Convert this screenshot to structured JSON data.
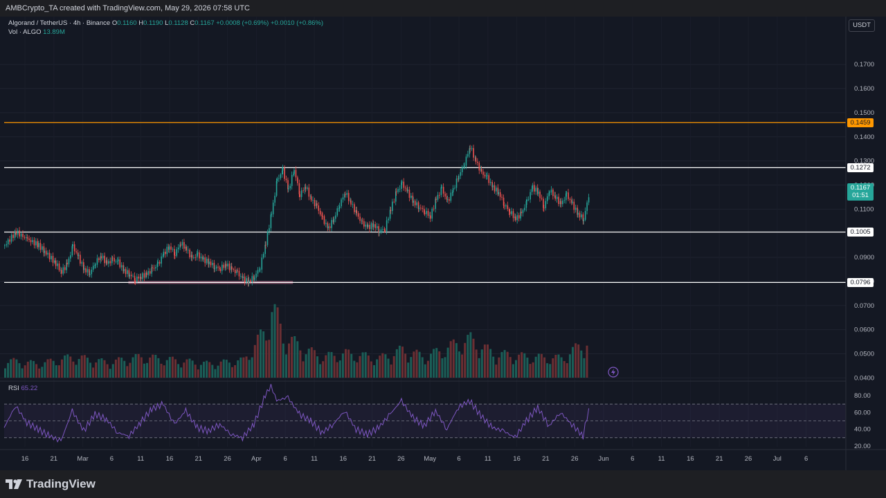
{
  "header": {
    "credit": "AMBCrypto_TA created with TradingView.com, May 29, 2026 07:58 UTC"
  },
  "legend": {
    "symbol": "Algorand / TetherUS · 4h · Binance",
    "open_label": "O",
    "open": "0.1160",
    "high_label": "H",
    "high": "0.1190",
    "low_label": "L",
    "low": "0.1128",
    "close_label": "C",
    "close": "0.1167",
    "change": "+0.0008 (+0.69%)",
    "change2": "+0.0010 (+0.86%)",
    "vol_label": "Vol · ALGO",
    "vol_value": "13.89M",
    "rsi_label": "RSI",
    "rsi_value": "65.22"
  },
  "currency_badge": "USDT",
  "current_price": {
    "price": "0.1167",
    "countdown": "01:51"
  },
  "colors": {
    "up": "#26a69a",
    "down": "#ef5350",
    "resistance": "#ff9800",
    "level": "#ffffff",
    "rsi": "#7e57c2",
    "support_zone": "#f48fb1",
    "volume_up": "#1b5e57",
    "volume_down": "#6b2f33"
  },
  "chart_data": [
    {
      "type": "line",
      "title": "Algorand / TetherUS · 4h · Binance",
      "price_axis": {
        "min": 0.04,
        "max": 0.175,
        "ticks": [
          "0.1700",
          "0.1600",
          "0.1500",
          "0.1400",
          "0.1300",
          "0.1200",
          "0.1100",
          "0.0900",
          "0.0800",
          "0.0700",
          "0.0600",
          "0.0500",
          "0.0400"
        ]
      },
      "time_axis": {
        "labels": [
          "16",
          "21",
          "Mar",
          "6",
          "11",
          "16",
          "21",
          "26",
          "Apr",
          "6",
          "11",
          "16",
          "21",
          "26",
          "May",
          "6",
          "11",
          "16",
          "21",
          "26",
          "Jun",
          "6",
          "11",
          "16",
          "21",
          "26",
          "Jul",
          "6"
        ]
      },
      "horizontal_levels": [
        {
          "value": 0.1459,
          "label": "0.1459",
          "style": "resistance"
        },
        {
          "value": 0.1272,
          "label": "0.1272",
          "style": "level"
        },
        {
          "value": 0.1005,
          "label": "0.1005",
          "style": "level"
        },
        {
          "value": 0.0796,
          "label": "0.0796",
          "style": "level"
        }
      ],
      "close_series": [
        {
          "d": 0,
          "c": 0.095
        },
        {
          "d": 2,
          "c": 0.1005
        },
        {
          "d": 4,
          "c": 0.0975
        },
        {
          "d": 6,
          "c": 0.095
        },
        {
          "d": 7,
          "c": 0.0925
        },
        {
          "d": 9,
          "c": 0.0875
        },
        {
          "d": 10,
          "c": 0.084
        },
        {
          "d": 11,
          "c": 0.087
        },
        {
          "d": 12,
          "c": 0.0945
        },
        {
          "d": 13,
          "c": 0.09
        },
        {
          "d": 14,
          "c": 0.085
        },
        {
          "d": 15,
          "c": 0.0835
        },
        {
          "d": 16,
          "c": 0.088
        },
        {
          "d": 17,
          "c": 0.0905
        },
        {
          "d": 18,
          "c": 0.0875
        },
        {
          "d": 19,
          "c": 0.089
        },
        {
          "d": 20,
          "c": 0.088
        },
        {
          "d": 21,
          "c": 0.0845
        },
        {
          "d": 22,
          "c": 0.083
        },
        {
          "d": 23,
          "c": 0.081
        },
        {
          "d": 24,
          "c": 0.082
        },
        {
          "d": 25,
          "c": 0.083
        },
        {
          "d": 26,
          "c": 0.085
        },
        {
          "d": 27,
          "c": 0.087
        },
        {
          "d": 28,
          "c": 0.0915
        },
        {
          "d": 29,
          "c": 0.0945
        },
        {
          "d": 30,
          "c": 0.0915
        },
        {
          "d": 31,
          "c": 0.096
        },
        {
          "d": 32,
          "c": 0.0935
        },
        {
          "d": 33,
          "c": 0.0895
        },
        {
          "d": 34,
          "c": 0.091
        },
        {
          "d": 35,
          "c": 0.089
        },
        {
          "d": 36,
          "c": 0.088
        },
        {
          "d": 37,
          "c": 0.086
        },
        {
          "d": 38,
          "c": 0.0855
        },
        {
          "d": 39,
          "c": 0.087
        },
        {
          "d": 40,
          "c": 0.085
        },
        {
          "d": 41,
          "c": 0.0835
        },
        {
          "d": 42,
          "c": 0.081
        },
        {
          "d": 43,
          "c": 0.08
        },
        {
          "d": 44,
          "c": 0.082
        },
        {
          "d": 45,
          "c": 0.086
        },
        {
          "d": 46,
          "c": 0.096
        },
        {
          "d": 47,
          "c": 0.108
        },
        {
          "d": 48,
          "c": 0.122
        },
        {
          "d": 49,
          "c": 0.126
        },
        {
          "d": 50,
          "c": 0.118
        },
        {
          "d": 51,
          "c": 0.1265
        },
        {
          "d": 52,
          "c": 0.116
        },
        {
          "d": 53,
          "c": 0.1195
        },
        {
          "d": 54,
          "c": 0.114
        },
        {
          "d": 55,
          "c": 0.111
        },
        {
          "d": 56,
          "c": 0.106
        },
        {
          "d": 57,
          "c": 0.102
        },
        {
          "d": 58,
          "c": 0.106
        },
        {
          "d": 59,
          "c": 0.112
        },
        {
          "d": 60,
          "c": 0.117
        },
        {
          "d": 61,
          "c": 0.1125
        },
        {
          "d": 62,
          "c": 0.108
        },
        {
          "d": 63,
          "c": 0.104
        },
        {
          "d": 64,
          "c": 0.1025
        },
        {
          "d": 65,
          "c": 0.1035
        },
        {
          "d": 66,
          "c": 0.101
        },
        {
          "d": 67,
          "c": 0.102
        },
        {
          "d": 68,
          "c": 0.11
        },
        {
          "d": 69,
          "c": 0.117
        },
        {
          "d": 70,
          "c": 0.1205
        },
        {
          "d": 71,
          "c": 0.117
        },
        {
          "d": 72,
          "c": 0.113
        },
        {
          "d": 73,
          "c": 0.111
        },
        {
          "d": 74,
          "c": 0.109
        },
        {
          "d": 75,
          "c": 0.107
        },
        {
          "d": 76,
          "c": 0.114
        },
        {
          "d": 77,
          "c": 0.1185
        },
        {
          "d": 78,
          "c": 0.113
        },
        {
          "d": 79,
          "c": 0.118
        },
        {
          "d": 80,
          "c": 0.124
        },
        {
          "d": 81,
          "c": 0.129
        },
        {
          "d": 82,
          "c": 0.136
        },
        {
          "d": 83,
          "c": 0.13
        },
        {
          "d": 84,
          "c": 0.125
        },
        {
          "d": 85,
          "c": 0.123
        },
        {
          "d": 86,
          "c": 0.119
        },
        {
          "d": 87,
          "c": 0.117
        },
        {
          "d": 88,
          "c": 0.112
        },
        {
          "d": 89,
          "c": 0.109
        },
        {
          "d": 90,
          "c": 0.106
        },
        {
          "d": 91,
          "c": 0.108
        },
        {
          "d": 92,
          "c": 0.113
        },
        {
          "d": 93,
          "c": 0.119
        },
        {
          "d": 94,
          "c": 0.117
        },
        {
          "d": 95,
          "c": 0.111
        },
        {
          "d": 96,
          "c": 0.118
        },
        {
          "d": 97,
          "c": 0.115
        },
        {
          "d": 98,
          "c": 0.112
        },
        {
          "d": 99,
          "c": 0.116
        },
        {
          "d": 100,
          "c": 0.112
        },
        {
          "d": 101,
          "c": 0.108
        },
        {
          "d": 102,
          "c": 0.106
        },
        {
          "d": 103,
          "c": 0.1167
        }
      ],
      "support_zone": {
        "d_start": 17,
        "d_end": 46,
        "low": 0.079,
        "high": 0.0802
      },
      "volume_series": [
        {
          "d": 0,
          "v": 0.25
        },
        {
          "d": 6,
          "v": 0.2
        },
        {
          "d": 12,
          "v": 0.3
        },
        {
          "d": 18,
          "v": 0.22
        },
        {
          "d": 24,
          "v": 0.3
        },
        {
          "d": 30,
          "v": 0.25
        },
        {
          "d": 36,
          "v": 0.2
        },
        {
          "d": 42,
          "v": 0.25
        },
        {
          "d": 46,
          "v": 0.7
        },
        {
          "d": 47,
          "v": 1.0
        },
        {
          "d": 48,
          "v": 0.85
        },
        {
          "d": 49,
          "v": 0.6
        },
        {
          "d": 51,
          "v": 0.5
        },
        {
          "d": 53,
          "v": 0.4
        },
        {
          "d": 56,
          "v": 0.3
        },
        {
          "d": 60,
          "v": 0.35
        },
        {
          "d": 66,
          "v": 0.28
        },
        {
          "d": 70,
          "v": 0.4
        },
        {
          "d": 74,
          "v": 0.3
        },
        {
          "d": 80,
          "v": 0.5
        },
        {
          "d": 82,
          "v": 0.55
        },
        {
          "d": 86,
          "v": 0.35
        },
        {
          "d": 92,
          "v": 0.3
        },
        {
          "d": 98,
          "v": 0.28
        },
        {
          "d": 103,
          "v": 0.55
        }
      ]
    },
    {
      "type": "line",
      "title": "RSI",
      "y_axis": {
        "min": 20,
        "max": 80,
        "ticks": [
          "80.00",
          "60.00",
          "40.00",
          "20.00"
        ]
      },
      "bands": [
        70,
        50,
        30
      ],
      "series": [
        {
          "d": 0,
          "r": 42
        },
        {
          "d": 2,
          "r": 68
        },
        {
          "d": 4,
          "r": 48
        },
        {
          "d": 6,
          "r": 40
        },
        {
          "d": 8,
          "r": 32
        },
        {
          "d": 10,
          "r": 26
        },
        {
          "d": 12,
          "r": 62
        },
        {
          "d": 14,
          "r": 38
        },
        {
          "d": 16,
          "r": 58
        },
        {
          "d": 18,
          "r": 52
        },
        {
          "d": 20,
          "r": 36
        },
        {
          "d": 22,
          "r": 32
        },
        {
          "d": 24,
          "r": 48
        },
        {
          "d": 26,
          "r": 64
        },
        {
          "d": 28,
          "r": 70
        },
        {
          "d": 30,
          "r": 46
        },
        {
          "d": 32,
          "r": 62
        },
        {
          "d": 34,
          "r": 42
        },
        {
          "d": 36,
          "r": 38
        },
        {
          "d": 38,
          "r": 46
        },
        {
          "d": 40,
          "r": 34
        },
        {
          "d": 42,
          "r": 30
        },
        {
          "d": 44,
          "r": 46
        },
        {
          "d": 46,
          "r": 80
        },
        {
          "d": 47,
          "r": 92
        },
        {
          "d": 48,
          "r": 74
        },
        {
          "d": 50,
          "r": 78
        },
        {
          "d": 52,
          "r": 58
        },
        {
          "d": 54,
          "r": 50
        },
        {
          "d": 56,
          "r": 36
        },
        {
          "d": 58,
          "r": 46
        },
        {
          "d": 60,
          "r": 62
        },
        {
          "d": 62,
          "r": 40
        },
        {
          "d": 64,
          "r": 34
        },
        {
          "d": 66,
          "r": 42
        },
        {
          "d": 68,
          "r": 58
        },
        {
          "d": 70,
          "r": 74
        },
        {
          "d": 72,
          "r": 54
        },
        {
          "d": 74,
          "r": 44
        },
        {
          "d": 76,
          "r": 62
        },
        {
          "d": 78,
          "r": 40
        },
        {
          "d": 80,
          "r": 66
        },
        {
          "d": 82,
          "r": 74
        },
        {
          "d": 84,
          "r": 56
        },
        {
          "d": 86,
          "r": 42
        },
        {
          "d": 88,
          "r": 38
        },
        {
          "d": 90,
          "r": 30
        },
        {
          "d": 92,
          "r": 50
        },
        {
          "d": 94,
          "r": 66
        },
        {
          "d": 96,
          "r": 44
        },
        {
          "d": 98,
          "r": 60
        },
        {
          "d": 100,
          "r": 46
        },
        {
          "d": 102,
          "r": 32
        },
        {
          "d": 103,
          "r": 65
        }
      ]
    }
  ]
}
